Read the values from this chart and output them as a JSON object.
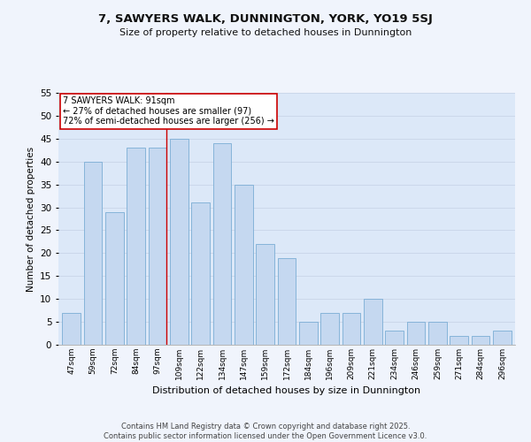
{
  "title": "7, SAWYERS WALK, DUNNINGTON, YORK, YO19 5SJ",
  "subtitle": "Size of property relative to detached houses in Dunnington",
  "xlabel": "Distribution of detached houses by size in Dunnington",
  "ylabel": "Number of detached properties",
  "categories": [
    "47sqm",
    "59sqm",
    "72sqm",
    "84sqm",
    "97sqm",
    "109sqm",
    "122sqm",
    "134sqm",
    "147sqm",
    "159sqm",
    "172sqm",
    "184sqm",
    "196sqm",
    "209sqm",
    "221sqm",
    "234sqm",
    "246sqm",
    "259sqm",
    "271sqm",
    "284sqm",
    "296sqm"
  ],
  "values": [
    7,
    40,
    29,
    43,
    43,
    45,
    31,
    44,
    35,
    22,
    19,
    5,
    7,
    7,
    10,
    3,
    5,
    5,
    2,
    2,
    3
  ],
  "bar_color": "#c5d8f0",
  "bar_edge_color": "#7badd4",
  "grid_color": "#c8d4e8",
  "bg_color": "#dce8f8",
  "fig_bg_color": "#f0f4fc",
  "red_line_index": 4,
  "annotation_line1": "7 SAWYERS WALK: 91sqm",
  "annotation_line2": "← 27% of detached houses are smaller (97)",
  "annotation_line3": "72% of semi-detached houses are larger (256) →",
  "annotation_box_color": "#ffffff",
  "annotation_box_edge": "#cc0000",
  "footer_line1": "Contains HM Land Registry data © Crown copyright and database right 2025.",
  "footer_line2": "Contains public sector information licensed under the Open Government Licence v3.0.",
  "ylim": [
    0,
    55
  ],
  "yticks": [
    0,
    5,
    10,
    15,
    20,
    25,
    30,
    35,
    40,
    45,
    50,
    55
  ]
}
